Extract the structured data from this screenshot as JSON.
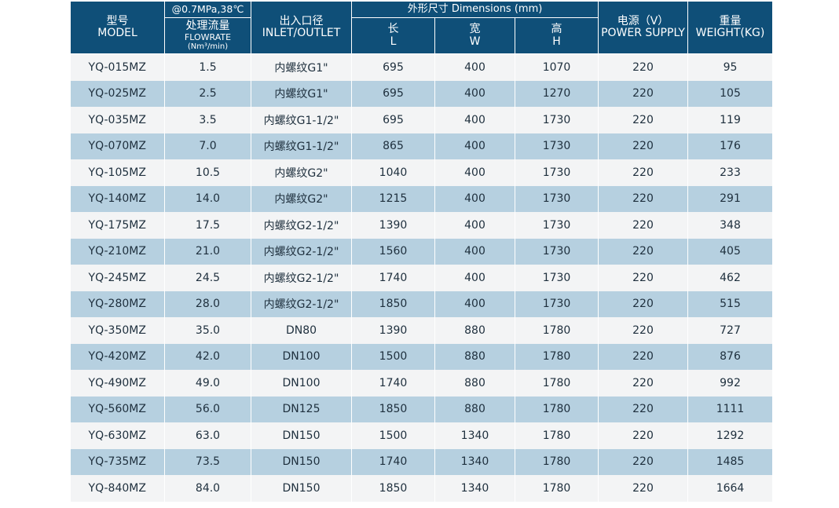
{
  "header": {
    "model": {
      "zh": "型号",
      "en": "MODEL"
    },
    "condition": "@0.7MPa,38℃",
    "flow": {
      "zh": "处理流量",
      "en": "FLOWRATE",
      "unit": "(Nm³/min)"
    },
    "inlet": {
      "zh": "出入口径",
      "en": "INLET/OUTLET"
    },
    "dimensions": "外形尺寸 Dimensions (mm)",
    "length": {
      "zh": "长",
      "en": "L"
    },
    "width": {
      "zh": "宽",
      "en": "W"
    },
    "height": {
      "zh": "高",
      "en": "H"
    },
    "power": {
      "zh": "电源（V）",
      "en": "POWER SUPPLY"
    },
    "weight": {
      "zh": "重量",
      "en": "WEIGHT(KG)"
    }
  },
  "rows": [
    [
      "YQ-015MZ",
      "1.5",
      "内螺纹G1\"",
      "695",
      "400",
      "1070",
      "220",
      "95"
    ],
    [
      "YQ-025MZ",
      "2.5",
      "内螺纹G1\"",
      "695",
      "400",
      "1270",
      "220",
      "105"
    ],
    [
      "YQ-035MZ",
      "3.5",
      "内螺纹G1-1/2\"",
      "695",
      "400",
      "1730",
      "220",
      "119"
    ],
    [
      "YQ-070MZ",
      "7.0",
      "内螺纹G1-1/2\"",
      "865",
      "400",
      "1730",
      "220",
      "176"
    ],
    [
      "YQ-105MZ",
      "10.5",
      "内螺纹G2\"",
      "1040",
      "400",
      "1730",
      "220",
      "233"
    ],
    [
      "YQ-140MZ",
      "14.0",
      "内螺纹G2\"",
      "1215",
      "400",
      "1730",
      "220",
      "291"
    ],
    [
      "YQ-175MZ",
      "17.5",
      "内螺纹G2-1/2\"",
      "1390",
      "400",
      "1730",
      "220",
      "348"
    ],
    [
      "YQ-210MZ",
      "21.0",
      "内螺纹G2-1/2\"",
      "1560",
      "400",
      "1730",
      "220",
      "405"
    ],
    [
      "YQ-245MZ",
      "24.5",
      "内螺纹G2-1/2\"",
      "1740",
      "400",
      "1730",
      "220",
      "462"
    ],
    [
      "YQ-280MZ",
      "28.0",
      "内螺纹G2-1/2\"",
      "1850",
      "400",
      "1730",
      "220",
      "515"
    ],
    [
      "YQ-350MZ",
      "35.0",
      "DN80",
      "1390",
      "880",
      "1780",
      "220",
      "727"
    ],
    [
      "YQ-420MZ",
      "42.0",
      "DN100",
      "1500",
      "880",
      "1780",
      "220",
      "876"
    ],
    [
      "YQ-490MZ",
      "49.0",
      "DN100",
      "1740",
      "880",
      "1780",
      "220",
      "992"
    ],
    [
      "YQ-560MZ",
      "56.0",
      "DN125",
      "1850",
      "880",
      "1780",
      "220",
      "1111"
    ],
    [
      "YQ-630MZ",
      "63.0",
      "DN150",
      "1500",
      "1340",
      "1780",
      "220",
      "1292"
    ],
    [
      "YQ-735MZ",
      "73.5",
      "DN150",
      "1740",
      "1340",
      "1780",
      "220",
      "1485"
    ],
    [
      "YQ-840MZ",
      "84.0",
      "DN150",
      "1850",
      "1340",
      "1780",
      "220",
      "1664"
    ]
  ]
}
